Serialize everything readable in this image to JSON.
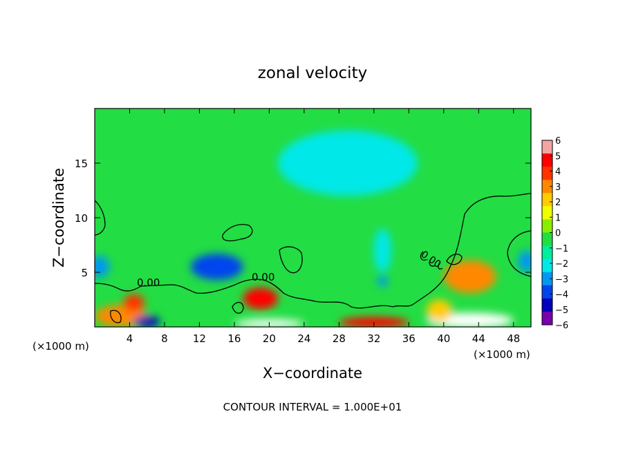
{
  "chart_data": {
    "type": "heatmap",
    "title": "zonal velocity",
    "xlabel": "X−coordinate",
    "ylabel": "Z−coordinate",
    "x_unit": "(×1000 m)",
    "xlim": [
      0,
      50
    ],
    "ylim": [
      0,
      20
    ],
    "x_ticks": [
      4,
      8,
      12,
      16,
      20,
      24,
      28,
      32,
      36,
      40,
      44,
      48
    ],
    "y_ticks": [
      5,
      10,
      15
    ],
    "x_tick_labels": [
      "4",
      "8",
      "12",
      "16",
      "20",
      "24",
      "28",
      "32",
      "36",
      "40",
      "44",
      "48"
    ],
    "y_tick_labels": [
      "5",
      "10",
      "15"
    ],
    "colorbar": {
      "min": -6,
      "max": 6,
      "ticks": [
        "6",
        "5",
        "4",
        "3",
        "2",
        "1",
        "0",
        "−1",
        "−2",
        "−3",
        "−4",
        "−5",
        "−6"
      ],
      "colors": [
        "#f4a4a4",
        "#ff0000",
        "#ff3300",
        "#ff8800",
        "#ffcc00",
        "#eeff00",
        "#88ee00",
        "#22dd44",
        "#00ee99",
        "#00e8e8",
        "#0099ee",
        "#0044ee",
        "#0000bb",
        "#7700aa"
      ]
    },
    "contour_labels": [
      "0.00",
      "0.00",
      "0.00"
    ],
    "contour_interval_text": "CONTOUR INTERVAL = 1.000E+01",
    "field_features": [
      {
        "x": 3,
        "z": 1,
        "u": 3,
        "extent": [
          3,
          1
        ]
      },
      {
        "x": 4.5,
        "z": 2.2,
        "u": 4.5,
        "extent": [
          1.2,
          0.8
        ]
      },
      {
        "x": 14,
        "z": 5.5,
        "u": -4.5,
        "extent": [
          3,
          1.2
        ]
      },
      {
        "x": 19,
        "z": 2.6,
        "u": 5.5,
        "extent": [
          2,
          1
        ]
      },
      {
        "x": 33,
        "z": 7,
        "u": -2.6,
        "extent": [
          1,
          2
        ]
      },
      {
        "x": 33,
        "z": 4.2,
        "u": -3.5,
        "extent": [
          0.6,
          0.5
        ]
      },
      {
        "x": 43,
        "z": 4.6,
        "u": 3.5,
        "extent": [
          3,
          1.5
        ]
      },
      {
        "x": 0.5,
        "z": 5.5,
        "u": -3.5,
        "extent": [
          1.2,
          1
        ]
      },
      {
        "x": 49.5,
        "z": 6,
        "u": -3,
        "extent": [
          1,
          1
        ]
      },
      {
        "x": 29,
        "z": 15,
        "u": -2.2,
        "extent": [
          8,
          3
        ]
      },
      {
        "x": 32,
        "z": 0.4,
        "u": 5.5,
        "extent": [
          4,
          0.5
        ]
      },
      {
        "x": 20,
        "z": 0.3,
        "u": -6.5,
        "extent": [
          4,
          0.4
        ]
      },
      {
        "x": 43,
        "z": 0.6,
        "u": -6.5,
        "extent": [
          5,
          0.7
        ]
      },
      {
        "x": 6,
        "z": 0.5,
        "u": -5,
        "extent": [
          1.5,
          0.5
        ]
      },
      {
        "x": 39.5,
        "z": 1.5,
        "u": 2,
        "extent": [
          1.5,
          1
        ]
      }
    ]
  }
}
